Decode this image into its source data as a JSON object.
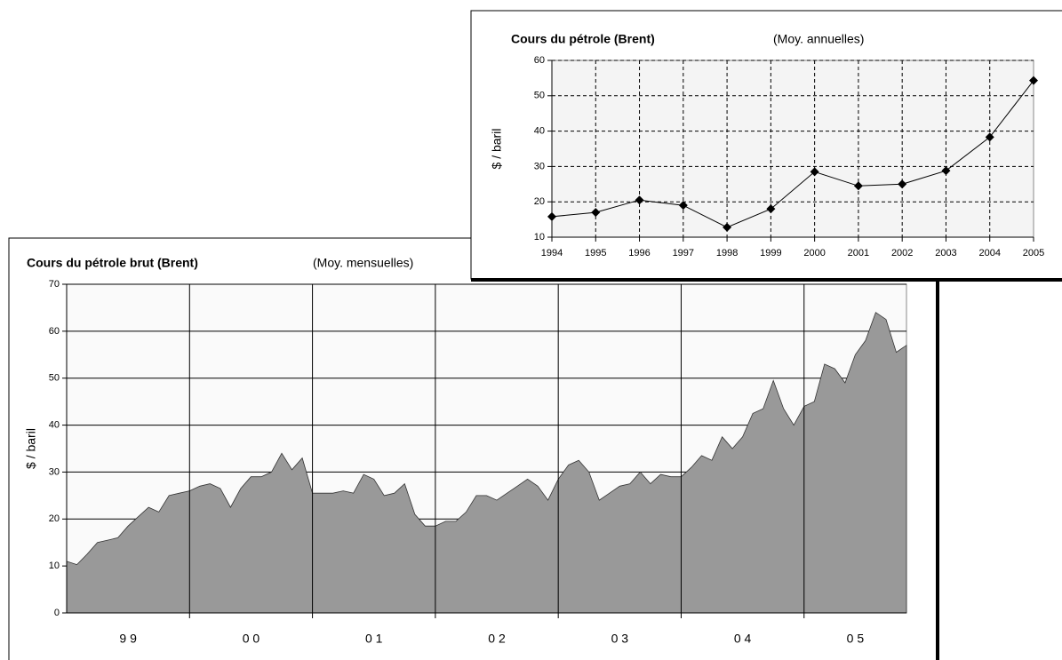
{
  "chart_data": [
    {
      "type": "area",
      "title": "Cours du pétrole brut (Brent)",
      "subtitle": "(Moy. mensuelles)",
      "y_label": "$ / baril",
      "categories": [
        "9 9",
        "0 0",
        "0 1",
        "0 2",
        "0 3",
        "0 4",
        "0 5"
      ],
      "values": [
        [
          11,
          10.3,
          12.5,
          15,
          15.5,
          16,
          18.5,
          20.5,
          22.5,
          21.5,
          25,
          25.5
        ],
        [
          26,
          27,
          27.5,
          26.5,
          22.5,
          26.5,
          29,
          29,
          30,
          34,
          30.5,
          33
        ],
        [
          25.5,
          25.5,
          25.5,
          26,
          25.5,
          29.5,
          28.5,
          25,
          25.5,
          27.5,
          21,
          18.5
        ],
        [
          18.5,
          19.5,
          19.5,
          21.5,
          25,
          25,
          24,
          25.5,
          27,
          28.5,
          27,
          24
        ],
        [
          28.5,
          31.5,
          32.5,
          30,
          24,
          25.5,
          27,
          27.5,
          30,
          27.5,
          29.5,
          29
        ],
        [
          29,
          31,
          33.5,
          32.5,
          37.5,
          35,
          37.5,
          42.5,
          43.5,
          49.5,
          43.5,
          40
        ],
        [
          44,
          45,
          53,
          52,
          49,
          55,
          58,
          64,
          62.5,
          55.5,
          57
        ]
      ],
      "color": "#999999",
      "ylim": [
        0,
        70
      ],
      "yticks": [
        0,
        10,
        20,
        30,
        40,
        50,
        60,
        70
      ],
      "grid": true
    },
    {
      "type": "line",
      "title": "Cours du pétrole (Brent)",
      "subtitle": "(Moy. annuelles)",
      "y_label": "$ / baril",
      "categories": [
        "1994",
        "1995",
        "1996",
        "1997",
        "1998",
        "1999",
        "2000",
        "2001",
        "2002",
        "2003",
        "2004",
        "2005"
      ],
      "values": [
        15.8,
        17,
        20.5,
        19,
        12.8,
        18,
        28.5,
        24.5,
        25,
        28.8,
        38.3,
        54.3
      ],
      "color": "#000000",
      "ylim": [
        10,
        60
      ],
      "yticks": [
        10,
        20,
        30,
        40,
        50,
        60
      ],
      "grid": true
    }
  ]
}
